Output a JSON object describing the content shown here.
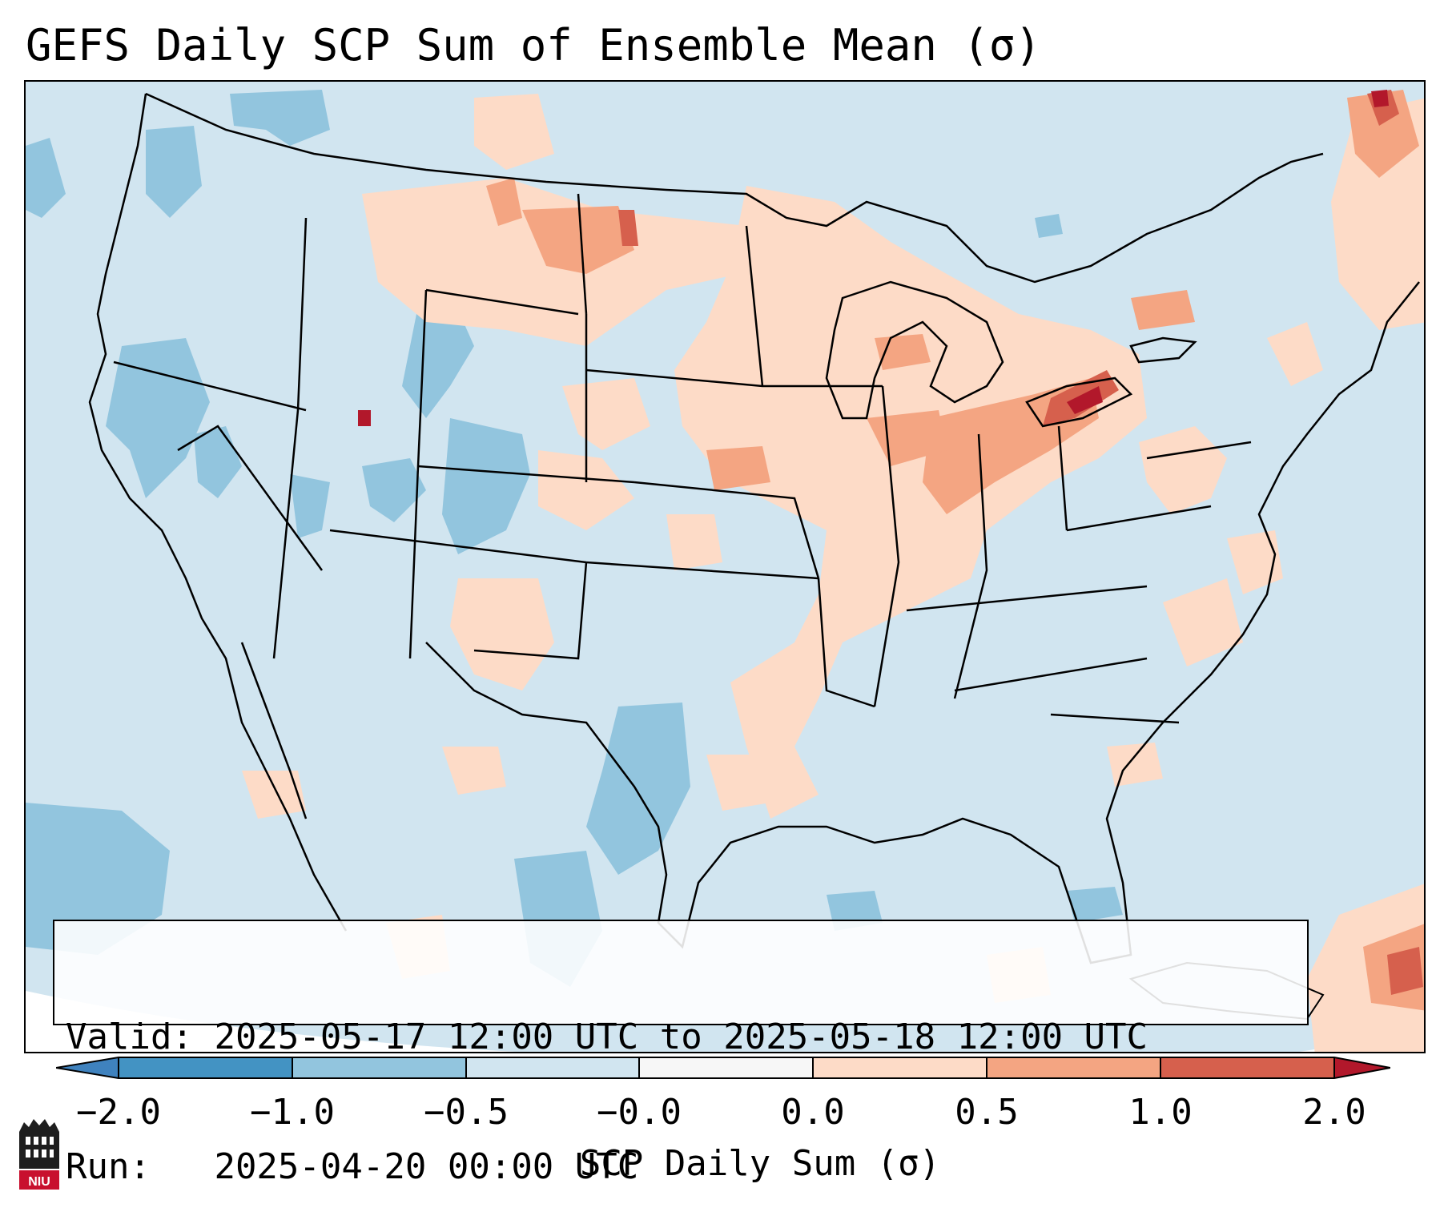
{
  "title": "GEFS Daily SCP Sum of Ensemble Mean (σ)",
  "info": {
    "valid_label": "Valid:",
    "valid_value": "2025-05-17 12:00 UTC to 2025-05-18 12:00 UTC",
    "run_label": "Run:  ",
    "run_value": "2025-04-20 00:00 UTC"
  },
  "colorbar": {
    "label": "SCP Daily Sum (σ)",
    "ticks": [
      "−2.0",
      "−1.0",
      "−0.5",
      "−0.0",
      "0.0",
      "0.5",
      "1.0",
      "2.0"
    ],
    "colors": {
      "extend_low": "#3f82be",
      "bin_-2_-1": "#4393c3",
      "bin_-1_-0.5": "#92c5de",
      "bin_-0.5_0": "#d1e5f0",
      "bin_0_0": "#f7f7f7",
      "bin_0_0.5": "#fddbc7",
      "bin_0.5_1": "#f4a582",
      "bin_1_2": "#d6604d",
      "extend_high": "#b2182b"
    }
  },
  "logo": {
    "text": "NIU",
    "color": "#c8102e"
  }
}
